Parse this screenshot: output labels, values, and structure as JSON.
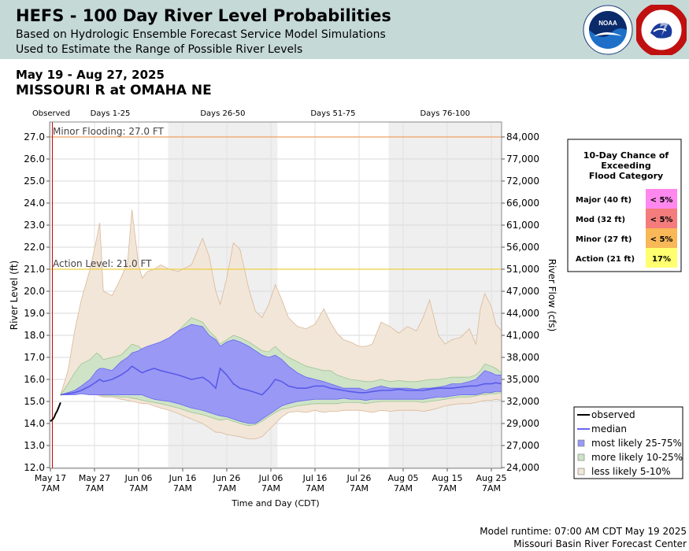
{
  "header": {
    "title": "HEFS - 100 Day River Level Probabilities",
    "subtitle1": "Based on Hydrologic Ensemble Forecast Service Model Simulations",
    "subtitle2": "Used to Estimate the Range of Possible River Levels",
    "logo1_label": "NOAA",
    "logo2_label": "NATIONAL WEATHER SERVICE"
  },
  "dates": "May 19 - Aug 27, 2025",
  "location": "MISSOURI R at OMAHA NE",
  "footer": {
    "runtime": "Model runtime: 07:00 AM CDT May 19 2025",
    "center": "Missouri Basin River Forecast Center"
  },
  "colors": {
    "band_5_10": "#f2e6d8",
    "band_5_10_edge": "#d9b89a",
    "band_10_25": "#cfe3c7",
    "band_10_25_edge": "#9ec592",
    "band_25_75": "#9999f5",
    "band_25_75_edge": "#6666ee",
    "median": "#5a5ae8",
    "observed": "#000000",
    "minor_line": "#f0a060",
    "action_line": "#f0d040",
    "shade": "#efefef",
    "now_line": "#cc0000"
  },
  "flood_table": {
    "title_lines": [
      "10-Day Chance of",
      "Exceeding",
      "Flood Category"
    ],
    "rows": [
      {
        "label": "Major (40 ft)",
        "value": "< 5%",
        "color": "#ff88ee"
      },
      {
        "label": "Mod (32 ft)",
        "value": "< 5%",
        "color": "#f47c7c"
      },
      {
        "label": "Minor (27 ft)",
        "value": "< 5%",
        "color": "#f8b858"
      },
      {
        "label": "Action (21 ft)",
        "value": "17%",
        "color": "#ffff70"
      }
    ]
  },
  "chart_data": {
    "type": "area",
    "title": "HEFS - 100 Day River Level Probabilities",
    "xlabel": "Time and Day (CDT)",
    "ylabel": "River Level (ft)",
    "ylabel_right": "River Flow (cfs)",
    "ylim": [
      12,
      27.5
    ],
    "xlim": [
      0,
      102.5
    ],
    "x_unit": "days since May 17 7AM",
    "now_day": 0.45,
    "x_ticks": [
      {
        "day": 0,
        "label": "May 17",
        "sub": "7AM"
      },
      {
        "day": 10,
        "label": "May 27",
        "sub": "7AM"
      },
      {
        "day": 20,
        "label": "Jun 06",
        "sub": "7AM"
      },
      {
        "day": 30,
        "label": "Jun 16",
        "sub": "7AM"
      },
      {
        "day": 40,
        "label": "Jun 26",
        "sub": "7AM"
      },
      {
        "day": 50,
        "label": "Jul 06",
        "sub": "7AM"
      },
      {
        "day": 60,
        "label": "Jul 16",
        "sub": "7AM"
      },
      {
        "day": 70,
        "label": "Jul 26",
        "sub": "7AM"
      },
      {
        "day": 80,
        "label": "Aug 05",
        "sub": "7AM"
      },
      {
        "day": 90,
        "label": "Aug 15",
        "sub": "7AM"
      },
      {
        "day": 100,
        "label": "Aug 25",
        "sub": "7AM"
      }
    ],
    "y_ticks_left": [
      12.0,
      13.0,
      14.0,
      15.0,
      16.0,
      17.0,
      18.0,
      19.0,
      20.0,
      21.0,
      22.0,
      23.0,
      24.0,
      25.0,
      26.0,
      27.0
    ],
    "y_ticks_right": [
      {
        "stage": 12.0,
        "label": "24,000"
      },
      {
        "stage": 13.0,
        "label": "27,000"
      },
      {
        "stage": 14.0,
        "label": "29,000"
      },
      {
        "stage": 15.0,
        "label": "32,000"
      },
      {
        "stage": 16.0,
        "label": "35,000"
      },
      {
        "stage": 17.0,
        "label": "38,000"
      },
      {
        "stage": 18.0,
        "label": "41,000"
      },
      {
        "stage": 19.0,
        "label": "44,000"
      },
      {
        "stage": 20.0,
        "label": "47,000"
      },
      {
        "stage": 21.0,
        "label": "51,000"
      },
      {
        "stage": 22.0,
        "label": "56,000"
      },
      {
        "stage": 23.0,
        "label": "61,000"
      },
      {
        "stage": 24.0,
        "label": "66,000"
      },
      {
        "stage": 25.0,
        "label": "72,000"
      },
      {
        "stage": 26.0,
        "label": "77,000"
      },
      {
        "stage": 27.0,
        "label": "84,000"
      }
    ],
    "periods": [
      {
        "label": "Observed",
        "start": -3,
        "end": 0.45
      },
      {
        "label": "Days 1-25",
        "start": 0.45,
        "end": 26.7,
        "shaded": false
      },
      {
        "label": "Days 26-50",
        "start": 26.7,
        "end": 51.5,
        "shaded": true
      },
      {
        "label": "Days 51-75",
        "start": 51.5,
        "end": 76.7,
        "shaded": false
      },
      {
        "label": "Days 76-100",
        "start": 76.7,
        "end": 102.5,
        "shaded": true
      }
    ],
    "thresholds": [
      {
        "label": "Minor Flooding: 27.0 FT",
        "value": 27.0,
        "kind": "minor"
      },
      {
        "label": "Action Level: 21.0 FT",
        "value": 21.0,
        "kind": "action"
      }
    ],
    "observed": {
      "x": [
        0,
        0.3,
        0.6,
        0.9,
        1.2,
        1.5,
        1.8,
        2.1,
        2.3
      ],
      "y": [
        14.1,
        14.15,
        14.2,
        14.3,
        14.45,
        14.55,
        14.7,
        14.85,
        14.95
      ]
    },
    "series_x": [
      2.3,
      4,
      5.5,
      7,
      9,
      10.5,
      11.2,
      12,
      14,
      16,
      17.5,
      18.5,
      20,
      20.8,
      22,
      23.5,
      25,
      27,
      29,
      32,
      34.5,
      36,
      37.5,
      38.5,
      40,
      41.5,
      43,
      45,
      46.5,
      48,
      49.5,
      51,
      52.5,
      54,
      56,
      58,
      60,
      62,
      63.5,
      65,
      66.5,
      68,
      70,
      71.5,
      73,
      75,
      77,
      79,
      81,
      83,
      84.5,
      86,
      88,
      89.5,
      91,
      93,
      95,
      96.5,
      97.5,
      98.5,
      100,
      101,
      102.3
    ],
    "p10_upper": [
      15.3,
      16.4,
      18.2,
      19.6,
      21.0,
      22.4,
      23.1,
      20.0,
      19.8,
      20.6,
      21.3,
      23.7,
      21.2,
      20.6,
      20.9,
      21.0,
      21.2,
      21.0,
      20.9,
      21.2,
      22.4,
      21.6,
      20.0,
      19.4,
      20.6,
      22.2,
      21.9,
      20.1,
      19.1,
      18.8,
      19.4,
      20.3,
      19.6,
      18.8,
      18.4,
      18.3,
      18.5,
      19.2,
      18.6,
      18.1,
      17.8,
      17.7,
      17.5,
      17.5,
      17.6,
      18.6,
      18.4,
      18.1,
      18.4,
      18.2,
      18.8,
      19.6,
      18.0,
      17.6,
      17.8,
      17.9,
      18.3,
      17.6,
      19.2,
      19.9,
      19.3,
      18.5,
      18.2
    ],
    "p10_lower": [
      15.3,
      15.4,
      15.4,
      15.45,
      15.4,
      15.3,
      15.25,
      15.2,
      15.2,
      15.1,
      15.05,
      15.0,
      14.95,
      14.9,
      14.9,
      14.8,
      14.7,
      14.6,
      14.45,
      14.2,
      14.0,
      13.8,
      13.6,
      13.6,
      13.5,
      13.45,
      13.4,
      13.3,
      13.3,
      13.4,
      13.7,
      14.0,
      14.3,
      14.5,
      14.55,
      14.5,
      14.6,
      14.5,
      14.55,
      14.55,
      14.6,
      14.6,
      14.6,
      14.55,
      14.5,
      14.6,
      14.55,
      14.6,
      14.6,
      14.6,
      14.55,
      14.6,
      14.7,
      14.8,
      14.85,
      14.9,
      14.9,
      14.95,
      15.0,
      15.05,
      15.05,
      15.1,
      15.05
    ],
    "p25_upper": [
      15.3,
      15.8,
      16.3,
      16.7,
      16.9,
      17.2,
      17.1,
      16.9,
      17.0,
      17.1,
      17.4,
      17.6,
      17.5,
      17.35,
      17.3,
      17.4,
      17.3,
      17.7,
      18.2,
      18.8,
      18.6,
      18.2,
      17.9,
      17.6,
      17.8,
      18.0,
      17.9,
      17.7,
      17.5,
      17.3,
      17.25,
      17.5,
      17.2,
      17.0,
      16.8,
      16.6,
      16.5,
      16.4,
      16.4,
      16.2,
      16.1,
      16.0,
      15.95,
      15.9,
      15.9,
      16.0,
      15.9,
      15.95,
      15.9,
      15.9,
      15.95,
      16.0,
      16.0,
      16.05,
      16.1,
      16.1,
      16.1,
      16.2,
      16.4,
      16.7,
      16.6,
      16.5,
      16.3
    ],
    "p25_lower": [
      15.3,
      15.35,
      15.35,
      15.35,
      15.3,
      15.3,
      15.3,
      15.25,
      15.25,
      15.2,
      15.2,
      15.15,
      15.1,
      15.05,
      15.0,
      14.95,
      14.9,
      14.8,
      14.7,
      14.5,
      14.4,
      14.3,
      14.2,
      14.15,
      14.2,
      14.1,
      14.0,
      13.9,
      13.95,
      14.1,
      14.3,
      14.5,
      14.65,
      14.7,
      14.8,
      14.85,
      14.9,
      14.9,
      14.9,
      14.9,
      14.95,
      14.95,
      14.95,
      14.9,
      14.95,
      15.0,
      15.0,
      15.0,
      15.0,
      15.0,
      14.95,
      15.0,
      15.05,
      15.1,
      15.15,
      15.2,
      15.2,
      15.25,
      15.3,
      15.3,
      15.35,
      15.35,
      15.4
    ],
    "p75_upper": [
      15.3,
      15.4,
      15.5,
      15.7,
      16.0,
      16.4,
      16.5,
      16.5,
      16.4,
      16.8,
      17.0,
      17.2,
      17.3,
      17.4,
      17.5,
      17.6,
      17.7,
      17.9,
      18.2,
      18.5,
      18.4,
      18.0,
      17.8,
      17.5,
      17.7,
      17.8,
      17.7,
      17.5,
      17.3,
      17.1,
      17.0,
      17.1,
      16.9,
      16.6,
      16.3,
      16.1,
      16.0,
      15.9,
      15.8,
      15.7,
      15.6,
      15.6,
      15.6,
      15.5,
      15.6,
      15.7,
      15.6,
      15.6,
      15.6,
      15.55,
      15.6,
      15.6,
      15.65,
      15.7,
      15.8,
      15.8,
      15.9,
      16.0,
      16.2,
      16.4,
      16.3,
      16.2,
      16.2
    ],
    "p75_lower": [
      15.3,
      15.3,
      15.3,
      15.35,
      15.3,
      15.3,
      15.3,
      15.3,
      15.3,
      15.3,
      15.3,
      15.3,
      15.3,
      15.3,
      15.2,
      15.1,
      15.05,
      15.0,
      14.9,
      14.7,
      14.6,
      14.5,
      14.4,
      14.35,
      14.3,
      14.2,
      14.1,
      14.0,
      14.0,
      14.2,
      14.4,
      14.6,
      14.8,
      14.9,
      15.0,
      15.05,
      15.1,
      15.1,
      15.1,
      15.1,
      15.15,
      15.1,
      15.1,
      15.05,
      15.1,
      15.1,
      15.1,
      15.1,
      15.1,
      15.1,
      15.1,
      15.15,
      15.2,
      15.2,
      15.25,
      15.3,
      15.3,
      15.3,
      15.35,
      15.4,
      15.4,
      15.45,
      15.45
    ],
    "median": [
      15.3,
      15.35,
      15.4,
      15.5,
      15.7,
      15.9,
      16.0,
      15.9,
      16.0,
      16.2,
      16.4,
      16.6,
      16.4,
      16.3,
      16.4,
      16.5,
      16.4,
      16.3,
      16.2,
      16.0,
      16.1,
      15.9,
      15.6,
      16.5,
      16.2,
      15.8,
      15.6,
      15.5,
      15.4,
      15.3,
      15.6,
      16.0,
      15.9,
      15.7,
      15.6,
      15.6,
      15.7,
      15.7,
      15.6,
      15.55,
      15.5,
      15.45,
      15.4,
      15.4,
      15.45,
      15.5,
      15.5,
      15.55,
      15.5,
      15.5,
      15.5,
      15.55,
      15.6,
      15.6,
      15.6,
      15.65,
      15.7,
      15.7,
      15.75,
      15.8,
      15.8,
      15.85,
      15.8
    ],
    "legend": [
      {
        "label": "observed",
        "kind": "line",
        "color": "#000000"
      },
      {
        "label": "median",
        "kind": "line",
        "color": "#6666ee"
      },
      {
        "label": "most likely 25-75%",
        "kind": "box",
        "color": "#9999f5"
      },
      {
        "label": "more likely 10-25%",
        "kind": "box",
        "color": "#cfe3c7"
      },
      {
        "label": "less likely 5-10%",
        "kind": "box",
        "color": "#f2e6d8"
      }
    ]
  }
}
